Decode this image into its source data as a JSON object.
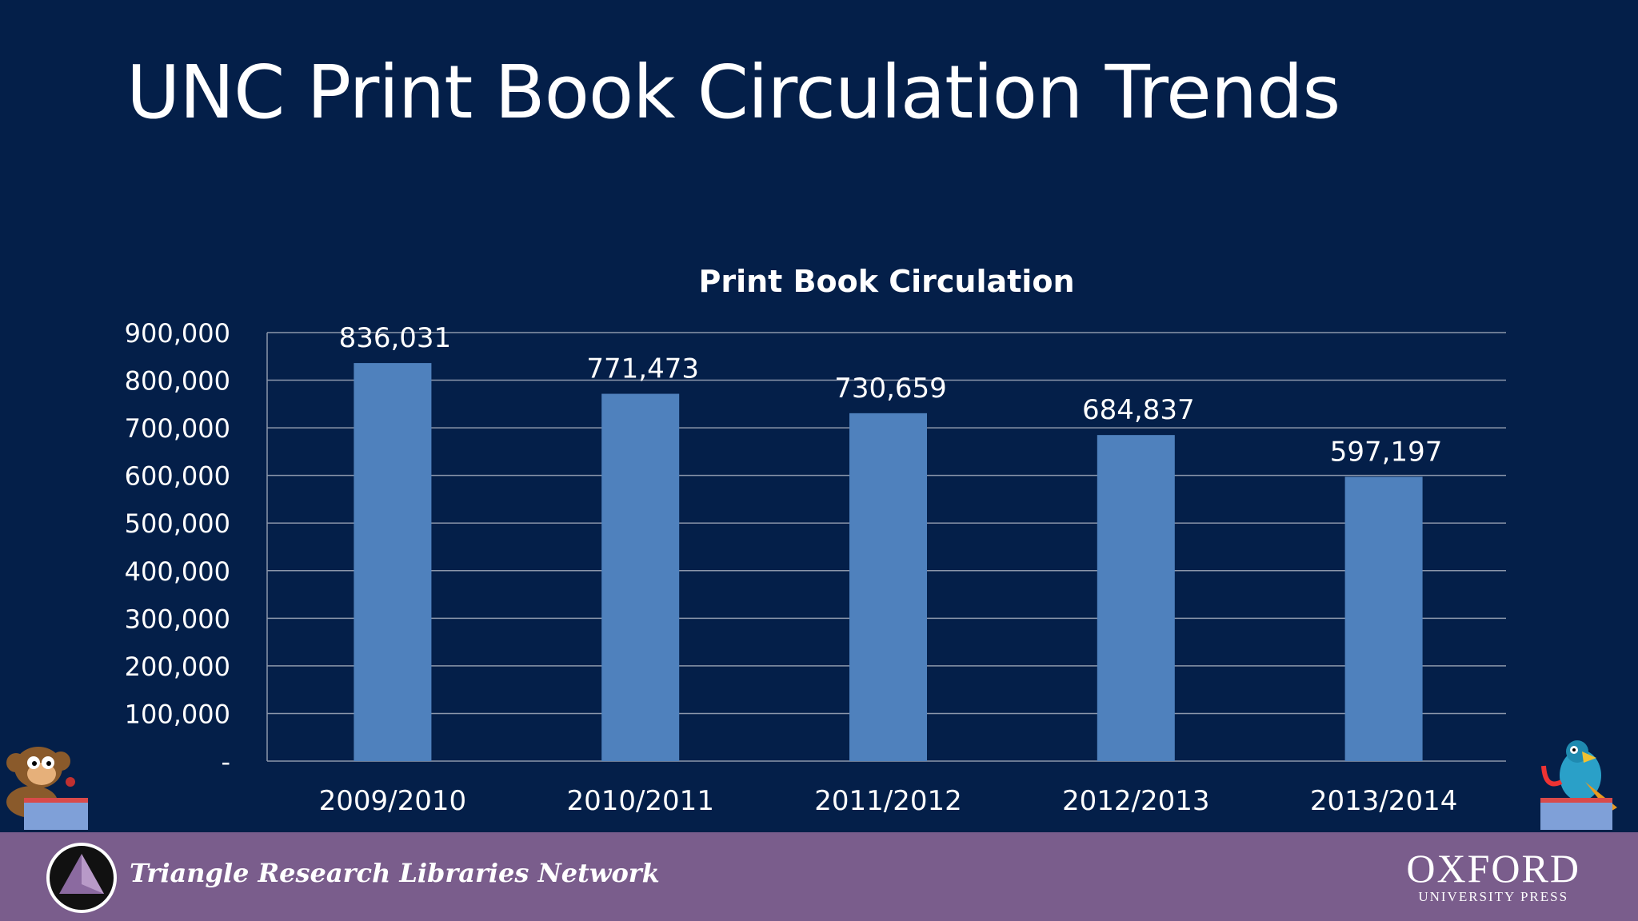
{
  "slide": {
    "title": "UNC Print Book Circulation Trends"
  },
  "footer": {
    "network_name": "Triangle Research Libraries Network",
    "oxford_name": "OXFORD",
    "oxford_sub": "UNIVERSITY PRESS",
    "background": "#7a5d8c"
  },
  "colors": {
    "background": "#041f49",
    "bar": "#4f81bd",
    "gridline": "#8c97ab",
    "text": "#ffffff"
  },
  "chart_data": {
    "type": "bar",
    "title": "Print Book Circulation",
    "categories": [
      "2009/2010",
      "2010/2011",
      "2011/2012",
      "2012/2013",
      "2013/2014"
    ],
    "values": [
      836031,
      771473,
      730659,
      684837,
      597197
    ],
    "data_labels": [
      "836,031",
      "771,473",
      "730,659",
      "684,837",
      "597,197"
    ],
    "yticks": [
      "-",
      "100,000",
      "200,000",
      "300,000",
      "400,000",
      "500,000",
      "600,000",
      "700,000",
      "800,000",
      "900,000"
    ],
    "ylim": [
      0,
      900000
    ],
    "grid": true,
    "legend": "none"
  }
}
